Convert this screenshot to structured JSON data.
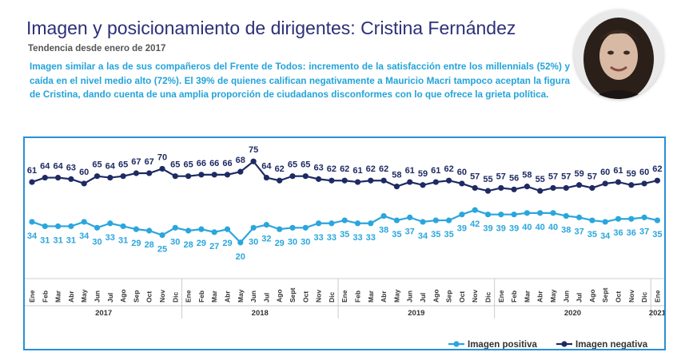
{
  "header": {
    "title": "Imagen y posicionamiento de dirigentes: Cristina Fernández",
    "subtitle": "Tendencia desde enero de 2017",
    "description": "Imagen similar a las de sus compañeros del Frente de Todos: incremento de la satisfacción entre los millennials (52%) y caída en el nivel medio alto (72%). El 39% de quienes califican negativamente a Mauricio Macri tampoco aceptan la figura de Cristina, dando cuenta de una amplia proporción de ciudadanos disconformes con lo que ofrece la grieta política."
  },
  "colors": {
    "negativa": "#1e2a63",
    "positiva": "#2aa6dd",
    "frame": "#2a8fd6"
  },
  "chart_data": {
    "type": "line",
    "x": [
      "Ene",
      "Feb",
      "Mar",
      "Abr",
      "May",
      "Jun",
      "Jul",
      "Ago",
      "Sep",
      "Oct",
      "Nov",
      "Dic",
      "Ene",
      "Feb",
      "Mar",
      "Abr",
      "May",
      "Jun",
      "Jul",
      "Ago",
      "Sept",
      "Oct",
      "Nov",
      "Dic",
      "Ene",
      "Feb",
      "Mar",
      "Abr",
      "May",
      "Jun",
      "Jul",
      "Ago",
      "Sep",
      "Oct",
      "Nov",
      "Dic",
      "Ene",
      "Feb",
      "Mar",
      "Abr",
      "May",
      "Jun",
      "Jul",
      "Ago",
      "Sept",
      "Oct",
      "Nov",
      "Dic",
      "Ene"
    ],
    "years": [
      {
        "label": "2017",
        "start": 0,
        "end": 11
      },
      {
        "label": "2018",
        "start": 12,
        "end": 23
      },
      {
        "label": "2019",
        "start": 24,
        "end": 35
      },
      {
        "label": "2020",
        "start": 36,
        "end": 47
      },
      {
        "label": "2021",
        "start": 48,
        "end": 48
      }
    ],
    "series": [
      {
        "name": "Imagen negativa",
        "color": "#1e2a63",
        "values": [
          61,
          64,
          64,
          63,
          60,
          65,
          64,
          65,
          67,
          67,
          70,
          65,
          65,
          66,
          66,
          66,
          68,
          75,
          64,
          62,
          65,
          65,
          63,
          62,
          62,
          61,
          62,
          62,
          58,
          61,
          59,
          61,
          62,
          60,
          57,
          55,
          57,
          56,
          58,
          55,
          57,
          57,
          59,
          57,
          60,
          61,
          59,
          60,
          62
        ]
      },
      {
        "name": "Imagen positiva",
        "color": "#2aa6dd",
        "values": [
          34,
          31,
          31,
          31,
          34,
          30,
          33,
          31,
          29,
          28,
          25,
          30,
          28,
          29,
          27,
          29,
          20,
          30,
          32,
          29,
          30,
          30,
          33,
          33,
          35,
          33,
          33,
          38,
          35,
          37,
          34,
          35,
          35,
          39,
          42,
          39,
          39,
          39,
          40,
          40,
          40,
          38,
          37,
          35,
          34,
          36,
          36,
          37,
          35
        ]
      }
    ],
    "ylim": [
      15,
      80
    ],
    "legend": "bottom-right",
    "grid": false
  }
}
